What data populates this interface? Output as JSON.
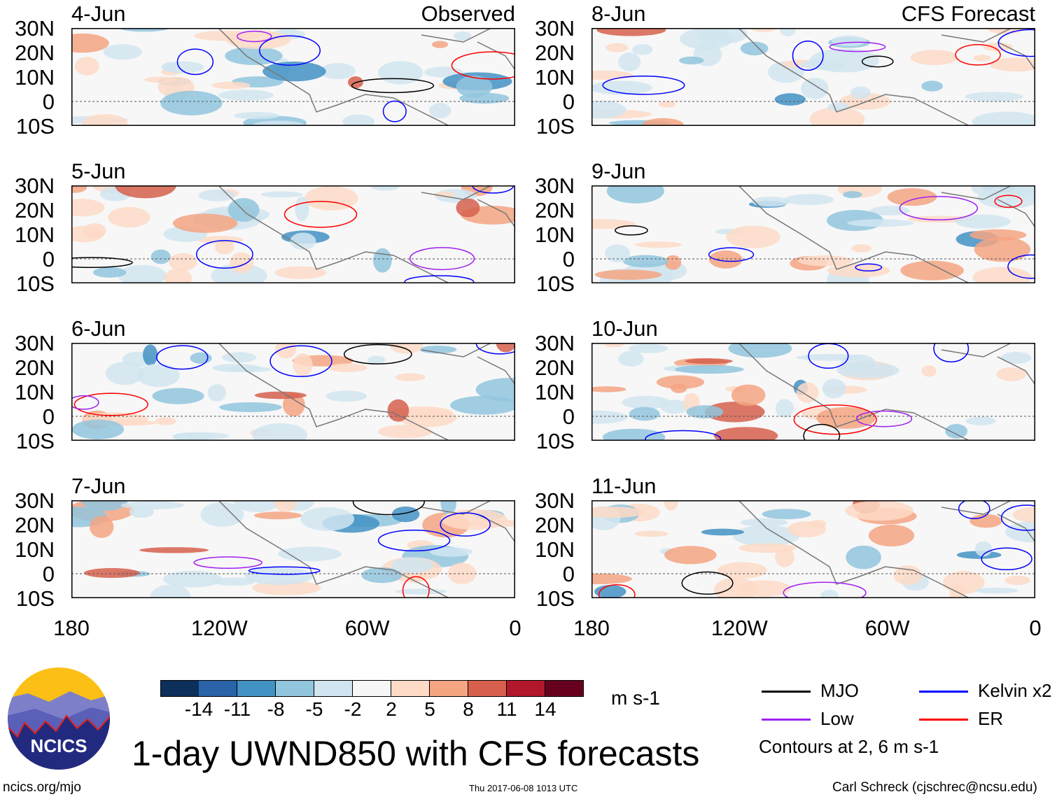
{
  "chart_data": {
    "type": "heatmap",
    "title": "1-day UWND850 with CFS forecasts",
    "variable": "UWND850",
    "units": "m s-1",
    "columns": [
      {
        "header": "Observed",
        "panels": [
          "4-Jun",
          "5-Jun",
          "6-Jun",
          "7-Jun"
        ]
      },
      {
        "header": "CFS Forecast",
        "panels": [
          "8-Jun",
          "9-Jun",
          "10-Jun",
          "11-Jun"
        ]
      }
    ],
    "ylabels": [
      "30N",
      "20N",
      "10N",
      "0",
      "10S"
    ],
    "ylim_deg": [
      -10,
      30
    ],
    "xlabels": [
      "180",
      "120W",
      "60W",
      "0"
    ],
    "xlim_deg": [
      -180,
      0
    ],
    "colorbar": {
      "ticks": [
        "-14",
        "-11",
        "-8",
        "-5",
        "-2",
        "2",
        "5",
        "8",
        "11",
        "14"
      ],
      "colors": [
        "#0d2f5c",
        "#2a63a8",
        "#4392c4",
        "#92c5de",
        "#d1e5f0",
        "#f7f7f7",
        "#fddbc7",
        "#f4a582",
        "#d6604d",
        "#b2182b",
        "#67001f"
      ]
    },
    "legend": {
      "items": [
        {
          "label": "MJO",
          "color": "#000000"
        },
        {
          "label": "Kelvin x2",
          "color": "#0000ff"
        },
        {
          "label": "Low",
          "color": "#a020f0"
        },
        {
          "label": "ER",
          "color": "#ff0000"
        }
      ],
      "note": "Contours at 2, 6 m s-1"
    }
  },
  "logo_text": "NCICS",
  "footer": {
    "url": "ncics.org/mjo",
    "timestamp": "Thu 2017-06-08 1013 UTC",
    "author": "Carl Schreck (cjschrec@ncsu.edu)"
  }
}
